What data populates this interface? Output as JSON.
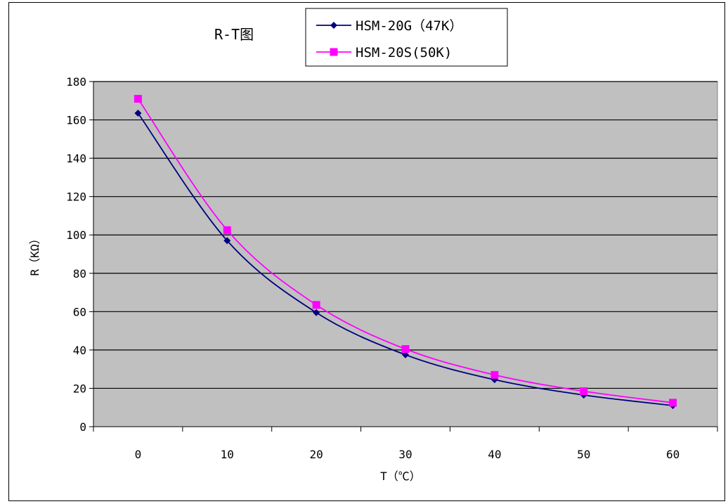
{
  "chart_data": {
    "type": "line",
    "title": "R-T图",
    "xlabel": "T（℃）",
    "ylabel": "R（KΩ）",
    "x": [
      0,
      10,
      20,
      30,
      40,
      50,
      60
    ],
    "xlim": [
      -5,
      65
    ],
    "ylim": [
      0,
      180
    ],
    "yticks": [
      0,
      20,
      40,
      60,
      80,
      100,
      120,
      140,
      160,
      180
    ],
    "xticks": [
      0,
      10,
      20,
      30,
      40,
      50,
      60
    ],
    "grid": "horizontal",
    "legend": "top",
    "plot_background": "#c0c0c0",
    "series": [
      {
        "name": "HSM-20G（47K）",
        "color": "#000080",
        "marker": "diamond",
        "values": [
          163.5,
          97,
          59.5,
          37.5,
          24.5,
          16.5,
          11
        ]
      },
      {
        "name": "HSM-20S(50K)",
        "color": "#ff00ff",
        "marker": "square",
        "values": [
          171,
          102.5,
          63.5,
          40.5,
          27,
          18.5,
          12.5
        ]
      }
    ]
  }
}
